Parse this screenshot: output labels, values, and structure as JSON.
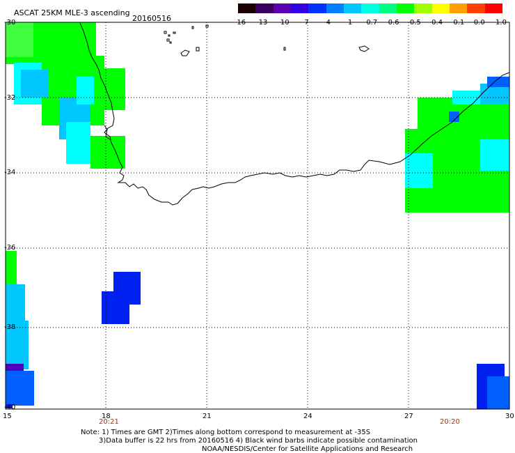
{
  "title": "ASCAT 25KM MLE-3 ascending",
  "date": "20160516",
  "colorbar": {
    "labels": [
      "-16",
      "-13",
      "-10",
      "-7",
      "-4",
      "-1",
      "-0.7",
      "-0.6",
      "-0.5",
      "-0.4",
      "-0.1",
      "0.0",
      "1.0"
    ],
    "colors": [
      "#1a0000",
      "#3a0060",
      "#5a00b0",
      "#3000e0",
      "#0030ff",
      "#0080ff",
      "#00c8ff",
      "#00ffe0",
      "#00ff80",
      "#00ff00",
      "#a0ff00",
      "#ffff00",
      "#ffa000",
      "#ff4000",
      "#ff0000"
    ]
  },
  "y_axis": [
    "-30",
    "-32",
    "-34",
    "-36",
    "-38",
    "-40"
  ],
  "x_axis": [
    "15",
    "18",
    "21",
    "24",
    "27",
    "30"
  ],
  "time_labels": [
    "20:21",
    "20:20"
  ],
  "notes": [
    "Note: 1) Times are GMT 2)Times along bottom correspond to measurement at -35S",
    "3)Data buffer is 22 hrs from 20160516 4) Black wind barbs indicate possible contamination",
    "NOAA/NESDIS/Center for Satellite Applications and Research"
  ],
  "colors": {
    "green": "#00ff00",
    "light_green": "#40ff40",
    "cyan": "#00ffff",
    "light_blue": "#00c8ff",
    "blue": "#0060ff",
    "dark_blue": "#0020f0",
    "purple": "#5000c0"
  }
}
